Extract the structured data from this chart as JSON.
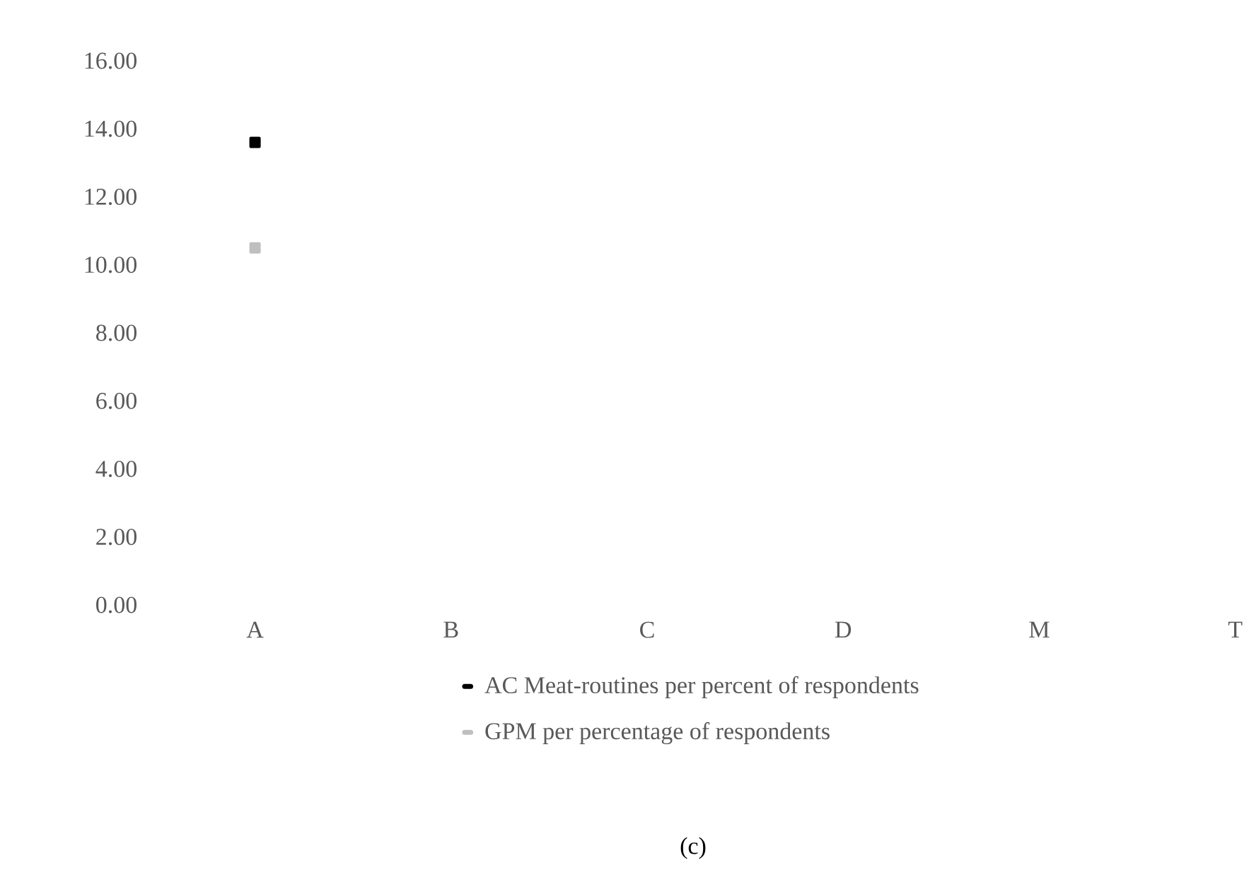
{
  "chart_data": {
    "type": "line",
    "categories": [
      "A",
      "B",
      "C",
      "D",
      "M",
      "T"
    ],
    "series": [
      {
        "name": "AC Meat-routines per percent of respondents",
        "color": "#000000",
        "values": [
          13.6,
          null,
          null,
          null,
          null,
          null
        ]
      },
      {
        "name": "GPM per percentage of respondents",
        "color": "#bfbfbf",
        "values": [
          10.5,
          null,
          null,
          null,
          null,
          null
        ]
      }
    ],
    "ylim": [
      0,
      16
    ],
    "yticks": [
      {
        "value": 0,
        "label": "0.00"
      },
      {
        "value": 2,
        "label": "2.00"
      },
      {
        "value": 4,
        "label": "4.00"
      },
      {
        "value": 6,
        "label": "6.00"
      },
      {
        "value": 8,
        "label": "8.00"
      },
      {
        "value": 10,
        "label": "10.00"
      },
      {
        "value": 12,
        "label": "12.00"
      },
      {
        "value": 14,
        "label": "14.00"
      },
      {
        "value": 16,
        "label": "16.00"
      }
    ],
    "legend": "bottom",
    "marker": "square",
    "annotations": [
      "(c)"
    ]
  }
}
